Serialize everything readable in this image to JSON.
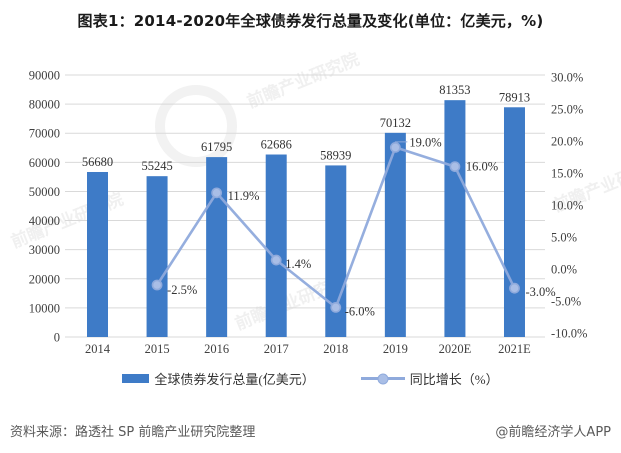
{
  "title": "图表1：2014-2020年全球债券发行总量及变化(单位：亿美元，%)",
  "chart_data": {
    "type": "bar+line combo",
    "categories": [
      "2014",
      "2015",
      "2016",
      "2017",
      "2018",
      "2019",
      "2020E",
      "2021E"
    ],
    "series": [
      {
        "name": "全球债券发行总量(亿美元）",
        "type": "bar",
        "axis": "left",
        "values": [
          56680,
          55245,
          61795,
          62686,
          58939,
          70132,
          81353,
          78913
        ],
        "data_labels": [
          "56680",
          "55245",
          "61795",
          "62686",
          "58939",
          "70132",
          "81353",
          "78913"
        ],
        "color": "#3e7bc7"
      },
      {
        "name": "同比增长（%）",
        "type": "line",
        "axis": "right",
        "values": [
          null,
          -2.5,
          11.9,
          1.4,
          -6.0,
          19.0,
          16.0,
          -3.0
        ],
        "data_labels": [
          "",
          "-2.5%",
          "11.9%",
          "1.4%",
          "-6.0%",
          "19.0%",
          "16.0%",
          "-3.0%"
        ],
        "color": "#8faadc",
        "marker_fill": "#a9bee6"
      }
    ],
    "left_axis": {
      "min": 0,
      "max": 90000,
      "step": 10000,
      "ticks": [
        "90000",
        "80000",
        "70000",
        "60000",
        "50000",
        "40000",
        "30000",
        "20000",
        "10000",
        "0"
      ]
    },
    "right_axis": {
      "min": -10,
      "max": 30,
      "step": 5,
      "ticks": [
        "30.0%",
        "25.0%",
        "20.0%",
        "15.0%",
        "10.0%",
        "5.0%",
        "0.0%",
        "-5.0%",
        "-10.0%"
      ]
    },
    "grid": true,
    "legend_position": "bottom"
  },
  "legend": {
    "bar_label": "全球债券发行总量(亿美元）",
    "line_label": "同比增长（%）"
  },
  "footer": {
    "source": "资料来源：路透社 SP 前瞻产业研究院整理",
    "credit": "@前瞻经济学人APP"
  },
  "watermark": {
    "text": "前瞻产业研究院"
  },
  "colors": {
    "bar": "#3e7bc7",
    "line": "#8faadc",
    "marker_fill": "#a9bee6",
    "grid": "#d9d9d9",
    "axis_text": "#404040",
    "label_text": "#333333",
    "footer_text": "#595959",
    "watermark": "#d8d8d8"
  }
}
